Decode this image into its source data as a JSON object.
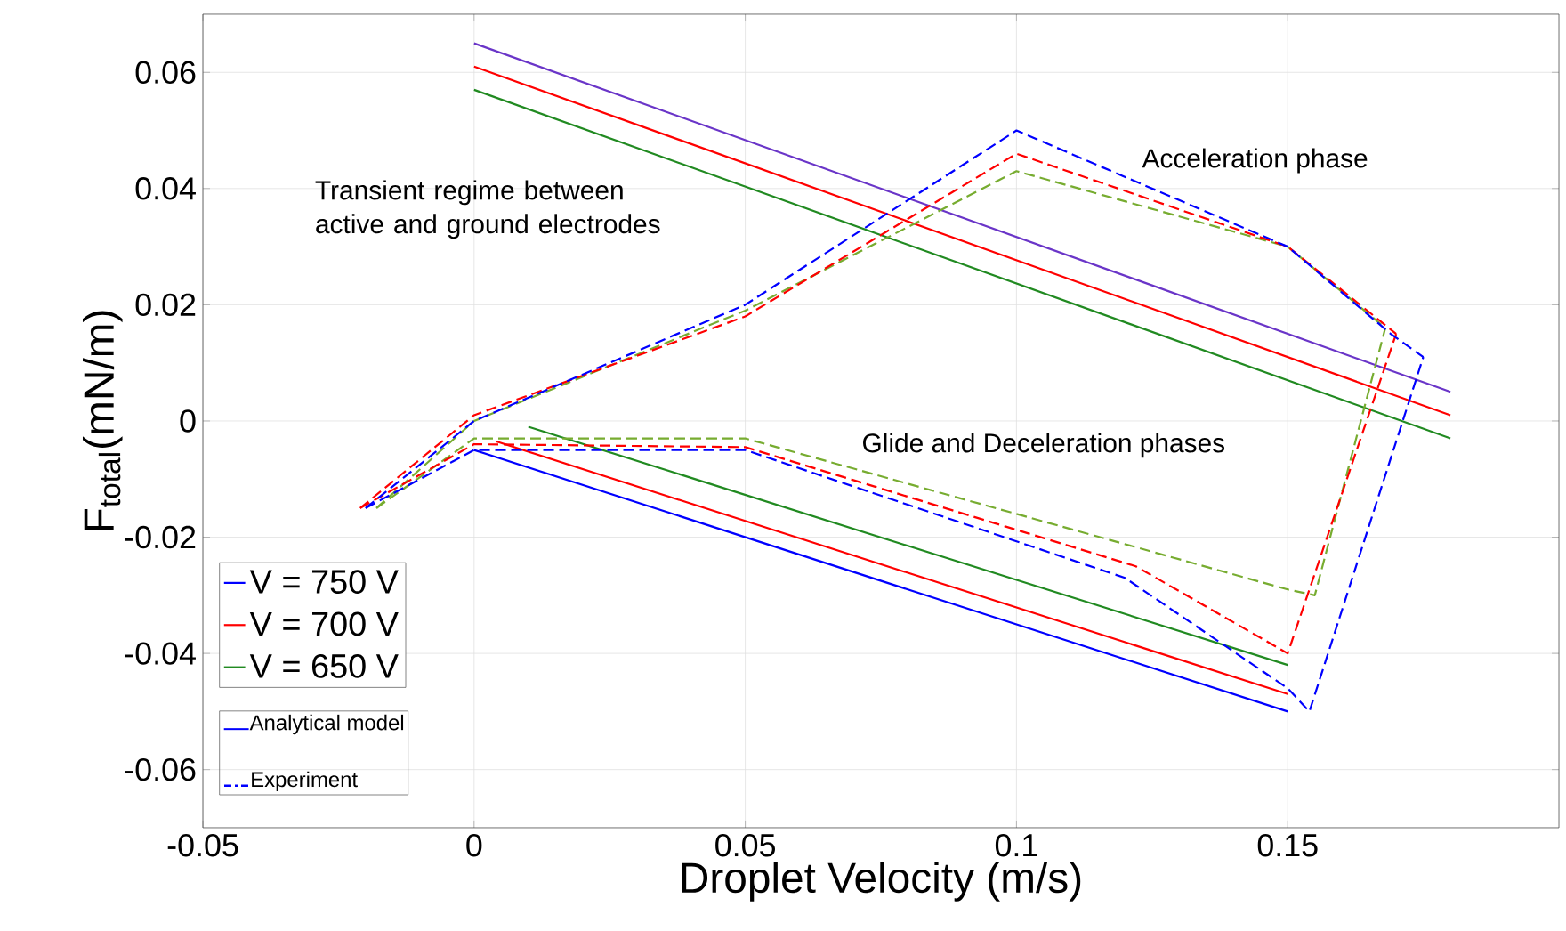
{
  "chart_data": {
    "type": "line",
    "xlabel": "Droplet Velocity (m/s)",
    "ylabel": "F$_{total}$(mN/m)",
    "xlim": [
      -0.05,
      0.2
    ],
    "ylim": [
      -0.07,
      0.07
    ],
    "xticks": [
      -0.05,
      0,
      0.05,
      0.1,
      0.15
    ],
    "yticks": [
      -0.06,
      -0.04,
      -0.02,
      0,
      0.02,
      0.04,
      0.06
    ],
    "grid": true,
    "legend": "bottom left",
    "annotations": [
      "Transient regime between active and ground electrodes",
      "Acceleration phase",
      "Glide and Deceleration phases",
      "Analytical model",
      "Experiment"
    ],
    "series": [
      {
        "name": "V = 750 V",
        "color": "#0000ff",
        "line_style": "solid",
        "x": [
          0,
          0.15
        ],
        "values": [
          -0.005,
          -0.05
        ]
      },
      {
        "name": "V = 700 V",
        "color": "#ff0000",
        "line_style": "solid",
        "x": [
          0.004,
          0.15
        ],
        "values": [
          -0.0035,
          -0.047
        ]
      },
      {
        "name": "V = 650 V",
        "color": "#218a21",
        "line_style": "solid",
        "x": [
          0.01,
          0.15
        ],
        "values": [
          -0.001,
          -0.042
        ]
      },
      {
        "color": "#6a35c8",
        "line_style": "solid",
        "x": [
          0,
          0.18
        ],
        "values": [
          0.065,
          0.005
        ]
      },
      {
        "color": "#ff0000",
        "line_style": "solid",
        "x": [
          0,
          0.18
        ],
        "values": [
          0.061,
          0.001
        ]
      },
      {
        "color": "#218a21",
        "line_style": "solid",
        "x": [
          0,
          0.18
        ],
        "values": [
          0.057,
          -0.003
        ]
      },
      {
        "color": "#77ac30",
        "line_style": "dashed",
        "x": [
          -0.018,
          0,
          0.05,
          0.1,
          0.15,
          0.168
        ],
        "values": [
          -0.015,
          0,
          0.019,
          0.043,
          0.03,
          0.016
        ]
      },
      {
        "color": "#77ac30",
        "line_style": "dashed",
        "x": [
          -0.018,
          0,
          0.05,
          0.15,
          0.155,
          0.168
        ],
        "values": [
          -0.015,
          -0.003,
          -0.003,
          -0.029,
          -0.03,
          0.016
        ]
      },
      {
        "color": "#ff0000",
        "line_style": "dashed",
        "x": [
          -0.021,
          0,
          0.05,
          0.1,
          0.15,
          0.17
        ],
        "values": [
          -0.015,
          0.001,
          0.018,
          0.046,
          0.03,
          0.015
        ]
      },
      {
        "color": "#ff0000",
        "line_style": "dashed",
        "x": [
          -0.021,
          0,
          0.05,
          0.122,
          0.15,
          0.17
        ],
        "values": [
          -0.015,
          -0.004,
          -0.0045,
          -0.025,
          -0.04,
          0.015
        ]
      },
      {
        "color": "#0000ff",
        "line_style": "dashed",
        "x": [
          -0.02,
          0,
          0.05,
          0.1,
          0.15,
          0.169,
          0.175
        ],
        "values": [
          -0.015,
          0,
          0.02,
          0.05,
          0.03,
          0.015,
          0.011
        ]
      },
      {
        "color": "#0000ff",
        "line_style": "dashed",
        "x": [
          -0.02,
          0,
          0.05,
          0.12,
          0.15,
          0.154,
          0.175
        ],
        "values": [
          -0.015,
          -0.005,
          -0.005,
          -0.027,
          -0.046,
          -0.05,
          0.011
        ]
      }
    ]
  }
}
